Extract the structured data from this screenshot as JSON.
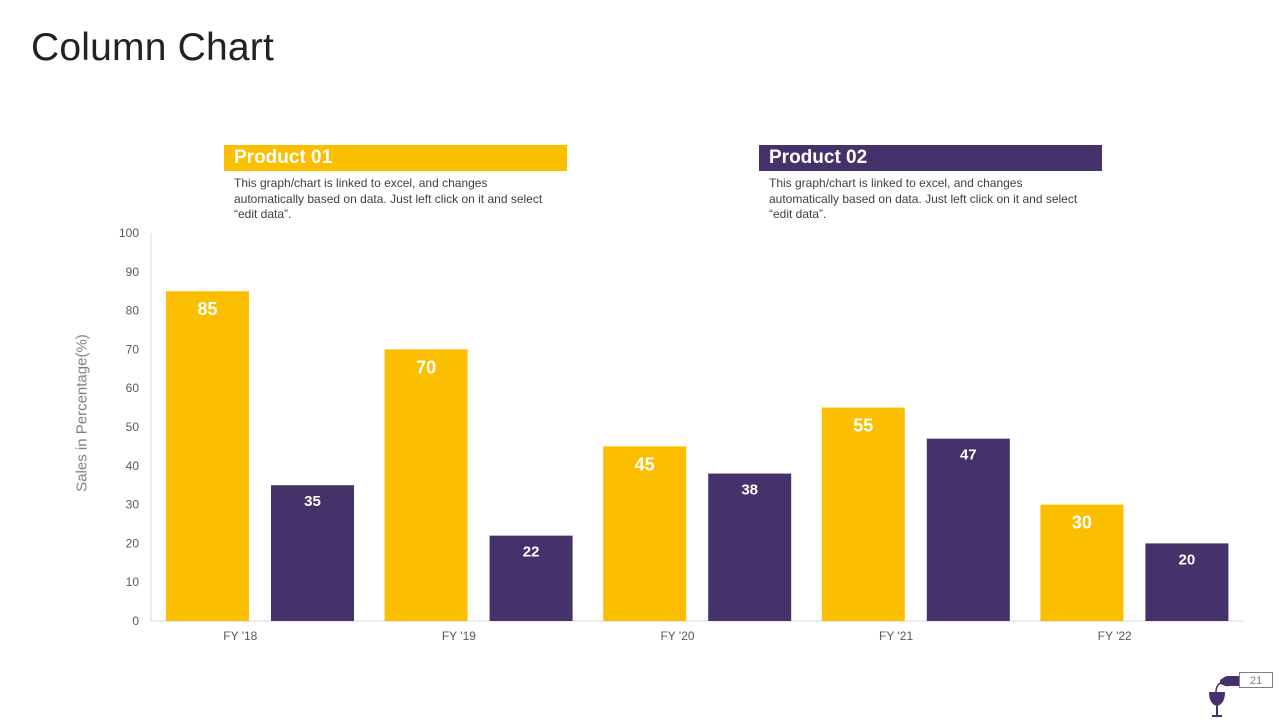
{
  "page": {
    "title": "Column Chart",
    "page_number": "21"
  },
  "legend": {
    "product1": {
      "label": "Product 01",
      "description": "This graph/chart is linked to excel, and changes automatically based on data. Just left click on it and select “edit data”."
    },
    "product2": {
      "label": "Product 02",
      "description": "This graph/chart is linked to excel, and changes automatically based on data. Just left click on it and select “edit data”."
    }
  },
  "colors": {
    "product1": "#FBBF00",
    "product2": "#45326B",
    "axis_text": "#595959",
    "axis_line": "#D9D9D9"
  },
  "chart_data": {
    "type": "bar",
    "title": "",
    "xlabel": "",
    "ylabel": "Sales in Percentage(%)",
    "ylim": [
      0,
      100
    ],
    "yticks": [
      0,
      10,
      20,
      30,
      40,
      50,
      60,
      70,
      80,
      90,
      100
    ],
    "grid": false,
    "categories": [
      "FY '18",
      "FY '19",
      "FY '20",
      "FY '21",
      "FY '22"
    ],
    "series": [
      {
        "name": "Product 01",
        "values": [
          85,
          70,
          45,
          55,
          30
        ]
      },
      {
        "name": "Product 02",
        "values": [
          35,
          22,
          38,
          47,
          20
        ]
      }
    ],
    "data_labels": true
  },
  "icons": {
    "logo": "wine-bottle-glass-icon"
  }
}
